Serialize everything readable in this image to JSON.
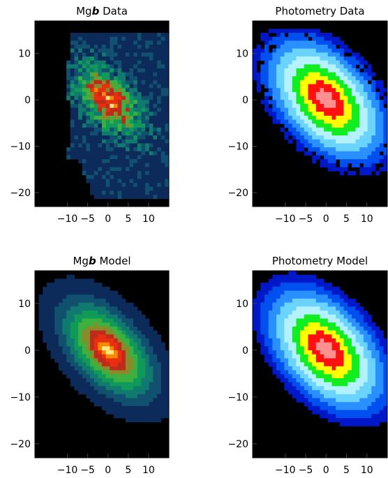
{
  "chart_data": [
    {
      "type": "heatmap",
      "panel": "top-left",
      "title_parts": [
        "Mg",
        "b",
        " Data"
      ],
      "map": "mgb",
      "model": false,
      "xlim": [
        -18,
        15
      ],
      "ylim": [
        -23,
        17
      ],
      "x_ticks": [
        -10,
        -5,
        0,
        5,
        10
      ],
      "y_ticks": [
        -20,
        -10,
        0,
        10
      ],
      "x_tick_labels": [
        "−10",
        "−5",
        "0",
        "5",
        "10"
      ],
      "y_tick_labels": [
        "−20",
        "−10",
        "0",
        "10"
      ],
      "center": [
        0,
        0
      ],
      "position_angle_deg": 40,
      "axis_ratio": 0.55
    },
    {
      "type": "heatmap",
      "panel": "top-right",
      "title_parts": [
        "Photometry Data"
      ],
      "map": "phot",
      "model": false,
      "xlim": [
        -18,
        15
      ],
      "ylim": [
        -23,
        17
      ],
      "x_ticks": [
        -10,
        -5,
        0,
        5,
        10
      ],
      "y_ticks": [
        -20,
        -10,
        0,
        10
      ],
      "x_tick_labels": [
        "−10",
        "−5",
        "0",
        "5",
        "10"
      ],
      "y_tick_labels": [
        "−20",
        "−10",
        "0",
        "10"
      ],
      "center": [
        0,
        0
      ],
      "position_angle_deg": 40,
      "axis_ratio": 0.6
    },
    {
      "type": "heatmap",
      "panel": "bottom-left",
      "title_parts": [
        "Mg",
        "b",
        " Model"
      ],
      "map": "mgb",
      "model": true,
      "xlim": [
        -18,
        15
      ],
      "ylim": [
        -23,
        17
      ],
      "x_ticks": [
        -10,
        -5,
        0,
        5,
        10
      ],
      "y_ticks": [
        -20,
        -10,
        0,
        10
      ],
      "x_tick_labels": [
        "−10",
        "−5",
        "0",
        "5",
        "10"
      ],
      "y_tick_labels": [
        "−20",
        "−10",
        "0",
        "10"
      ],
      "center": [
        0,
        0
      ],
      "position_angle_deg": 40,
      "axis_ratio": 0.55
    },
    {
      "type": "heatmap",
      "panel": "bottom-right",
      "title_parts": [
        "Photometry Model"
      ],
      "map": "phot",
      "model": true,
      "xlim": [
        -18,
        15
      ],
      "ylim": [
        -23,
        17
      ],
      "x_ticks": [
        -10,
        -5,
        0,
        5,
        10
      ],
      "y_ticks": [
        -20,
        -10,
        0,
        10
      ],
      "x_tick_labels": [
        "−10",
        "−5",
        "0",
        "5",
        "10"
      ],
      "y_tick_labels": [
        "−20",
        "−10",
        "0",
        "10"
      ],
      "center": [
        0,
        0
      ],
      "position_angle_deg": 40,
      "axis_ratio": 0.6
    }
  ],
  "colors": {
    "background": "#000000",
    "mgb_scale": [
      "#0c2a5a",
      "#11506e",
      "#117a6e",
      "#0f9a5a",
      "#3db040",
      "#8a8a2a",
      "#c02a1a",
      "#e83010",
      "#f88a00",
      "#ffe680"
    ],
    "phot_scale": [
      "#0018c8",
      "#0050f0",
      "#2a90ff",
      "#6ad4ff",
      "#b4f2ff",
      "#10ee20",
      "#ffff00",
      "#ff1010",
      "#ff9090"
    ]
  }
}
